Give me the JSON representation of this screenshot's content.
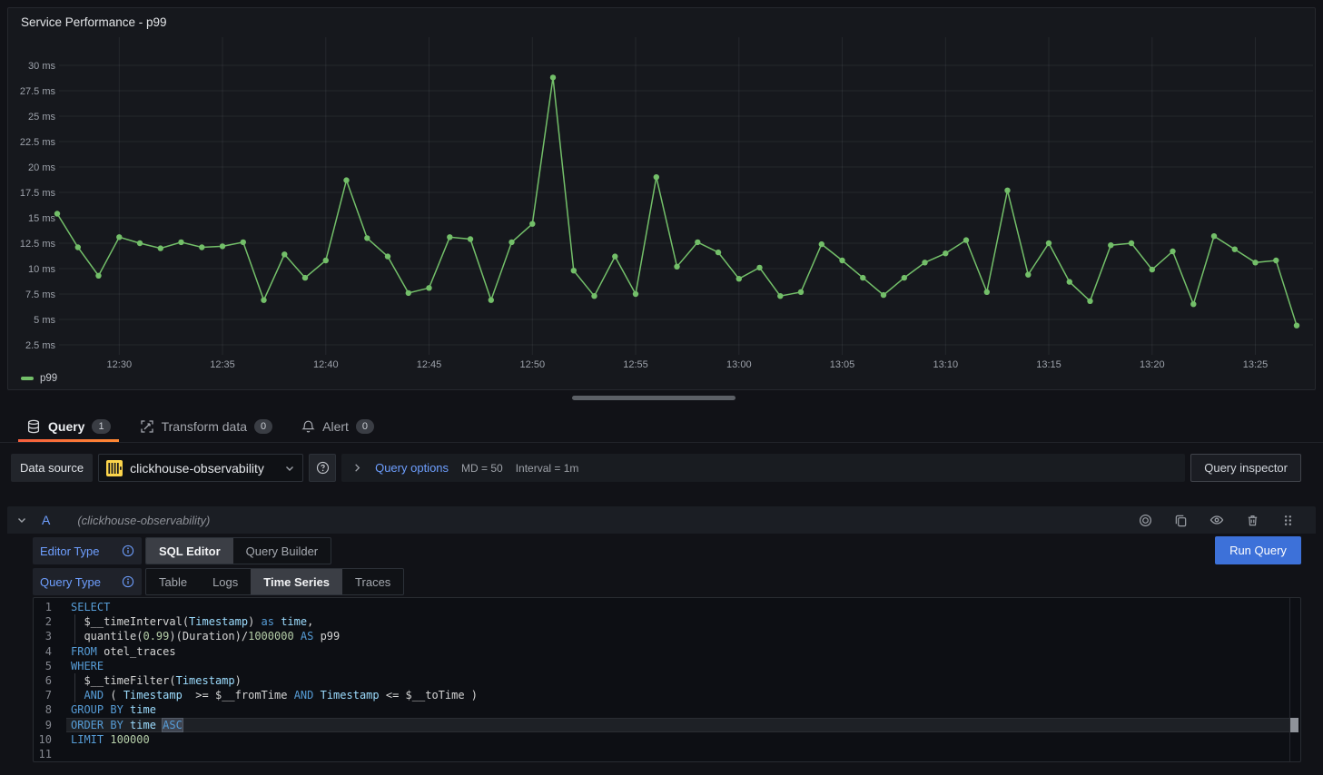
{
  "panel": {
    "title": "Service Performance - p99"
  },
  "chart_data": {
    "type": "line",
    "title": "Service Performance - p99",
    "unit": "ms",
    "color": "#73BF69",
    "grid": true,
    "legend_position": "bottom-left",
    "legend": [
      "p99"
    ],
    "ylim": [
      1,
      31
    ],
    "y_ticks": [
      2.5,
      5,
      7.5,
      10,
      12.5,
      15,
      17.5,
      20,
      22.5,
      25,
      27.5,
      30
    ],
    "x_tick_labels": [
      "12:30",
      "12:35",
      "12:40",
      "12:45",
      "12:50",
      "12:55",
      "13:00",
      "13:05",
      "13:10",
      "13:15",
      "13:20",
      "13:25"
    ],
    "x": [
      "12:27",
      "12:28",
      "12:29",
      "12:30",
      "12:31",
      "12:32",
      "12:33",
      "12:34",
      "12:35",
      "12:36",
      "12:37",
      "12:38",
      "12:39",
      "12:40",
      "12:41",
      "12:42",
      "12:43",
      "12:44",
      "12:45",
      "12:46",
      "12:47",
      "12:48",
      "12:49",
      "12:50",
      "12:51",
      "12:52",
      "12:53",
      "12:54",
      "12:55",
      "12:56",
      "12:57",
      "12:58",
      "12:59",
      "13:00",
      "13:01",
      "13:02",
      "13:03",
      "13:04",
      "13:05",
      "13:06",
      "13:07",
      "13:08",
      "13:09",
      "13:10",
      "13:11",
      "13:12",
      "13:13",
      "13:14",
      "13:15",
      "13:16",
      "13:17",
      "13:18",
      "13:19",
      "13:20",
      "13:21",
      "13:22",
      "13:23",
      "13:24",
      "13:25",
      "13:26",
      "13:27"
    ],
    "series": [
      {
        "name": "p99",
        "values": [
          15.4,
          12.1,
          9.3,
          13.1,
          12.5,
          12.0,
          12.6,
          12.1,
          12.2,
          12.6,
          6.9,
          11.4,
          9.1,
          10.8,
          18.7,
          13.0,
          11.2,
          7.6,
          8.1,
          13.1,
          12.9,
          6.9,
          12.6,
          14.4,
          28.8,
          9.8,
          7.3,
          11.2,
          7.5,
          19.0,
          10.2,
          12.6,
          11.6,
          9.0,
          10.1,
          7.3,
          7.7,
          12.4,
          10.8,
          9.1,
          7.4,
          9.1,
          10.6,
          11.5,
          12.8,
          7.7,
          17.7,
          9.4,
          12.5,
          8.7,
          6.8,
          12.3,
          12.5,
          9.9,
          11.7,
          6.5,
          13.2,
          11.9,
          10.6,
          10.8,
          4.4
        ]
      }
    ]
  },
  "tabs": {
    "items": [
      {
        "label": "Query",
        "badge": "1",
        "icon": "database",
        "active": true
      },
      {
        "label": "Transform data",
        "badge": "0",
        "icon": "transform",
        "active": false
      },
      {
        "label": "Alert",
        "badge": "0",
        "icon": "bell",
        "active": false
      }
    ]
  },
  "toolbar": {
    "datasource_label": "Data source",
    "datasource_value": "clickhouse-observability",
    "query_options_label": "Query options",
    "max_data_points": "MD = 50",
    "interval": "Interval = 1m",
    "inspector_label": "Query inspector"
  },
  "query": {
    "ref_id": "A",
    "datasource_hint": "(clickhouse-observability)",
    "editor_type_label": "Editor Type",
    "editor_type_options": [
      "SQL Editor",
      "Query Builder"
    ],
    "editor_type_selected": "SQL Editor",
    "query_type_label": "Query Type",
    "query_type_options": [
      "Table",
      "Logs",
      "Time Series",
      "Traces"
    ],
    "query_type_selected": "Time Series",
    "run_label": "Run Query",
    "action_icons": [
      "record-circle-icon",
      "copy-icon",
      "eye-icon",
      "trash-icon",
      "drag-handle-icon"
    ]
  },
  "sql_editor": {
    "language": "sql",
    "lines": [
      {
        "n": 1,
        "tokens": [
          [
            "kw",
            "SELECT"
          ]
        ]
      },
      {
        "n": 2,
        "indent": true,
        "tokens": [
          [
            "d",
            "  $__timeInterval("
          ],
          [
            "v",
            "Timestamp"
          ],
          [
            "d",
            ") "
          ],
          [
            "kw",
            "as"
          ],
          [
            "v",
            " time"
          ],
          [
            "d",
            ","
          ]
        ]
      },
      {
        "n": 3,
        "indent": true,
        "tokens": [
          [
            "d",
            "  quantile("
          ],
          [
            "num",
            "0.99"
          ],
          [
            "d",
            ")(Duration)/"
          ],
          [
            "num",
            "1000000"
          ],
          [
            "kw",
            " AS"
          ],
          [
            "d",
            " p99"
          ]
        ]
      },
      {
        "n": 4,
        "tokens": [
          [
            "kw",
            "FROM"
          ],
          [
            "d",
            " otel_traces"
          ]
        ]
      },
      {
        "n": 5,
        "tokens": [
          [
            "kw",
            "WHERE"
          ]
        ]
      },
      {
        "n": 6,
        "indent": true,
        "tokens": [
          [
            "d",
            "  $__timeFilter("
          ],
          [
            "v",
            "Timestamp"
          ],
          [
            "d",
            ")"
          ]
        ]
      },
      {
        "n": 7,
        "indent": true,
        "tokens": [
          [
            "d",
            "  "
          ],
          [
            "kw",
            "AND"
          ],
          [
            "d",
            " ( "
          ],
          [
            "v",
            "Timestamp"
          ],
          [
            "d",
            "  >= $__fromTime "
          ],
          [
            "kw",
            "AND"
          ],
          [
            "d",
            " "
          ],
          [
            "v",
            "Timestamp"
          ],
          [
            "d",
            " <= $__toTime )"
          ]
        ]
      },
      {
        "n": 8,
        "tokens": [
          [
            "kw",
            "GROUP BY"
          ],
          [
            "v",
            " time"
          ]
        ]
      },
      {
        "n": 9,
        "highlight": true,
        "tokens": [
          [
            "kw",
            "ORDER BY"
          ],
          [
            "v",
            " time"
          ],
          [
            "d",
            " "
          ],
          [
            "sel",
            "ASC"
          ]
        ]
      },
      {
        "n": 10,
        "tokens": [
          [
            "kw",
            "LIMIT"
          ],
          [
            "num",
            " 100000"
          ]
        ]
      },
      {
        "n": 11,
        "tokens": []
      }
    ]
  }
}
